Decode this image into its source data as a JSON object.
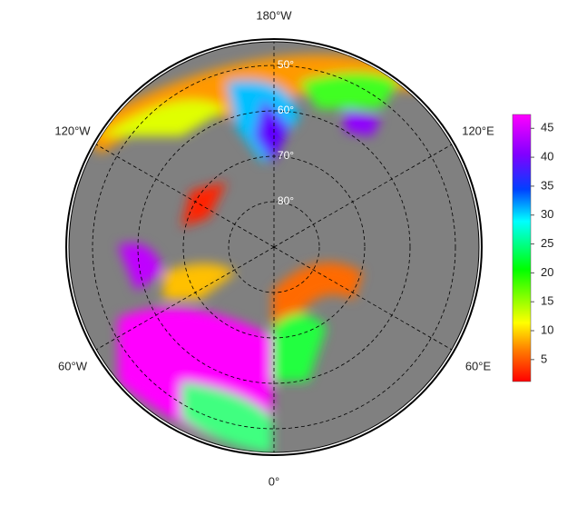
{
  "map": {
    "longitude_labels": [
      "180°W",
      "120°W",
      "120°E",
      "60°W",
      "60°E",
      "0°"
    ],
    "latitude_labels": [
      "50°",
      "60°",
      "70°",
      "80°"
    ],
    "colorbar": {
      "lim": [
        1.2,
        47.4
      ],
      "ticks": [
        5,
        10,
        15,
        20,
        25,
        30,
        35,
        40,
        45
      ]
    }
  }
}
